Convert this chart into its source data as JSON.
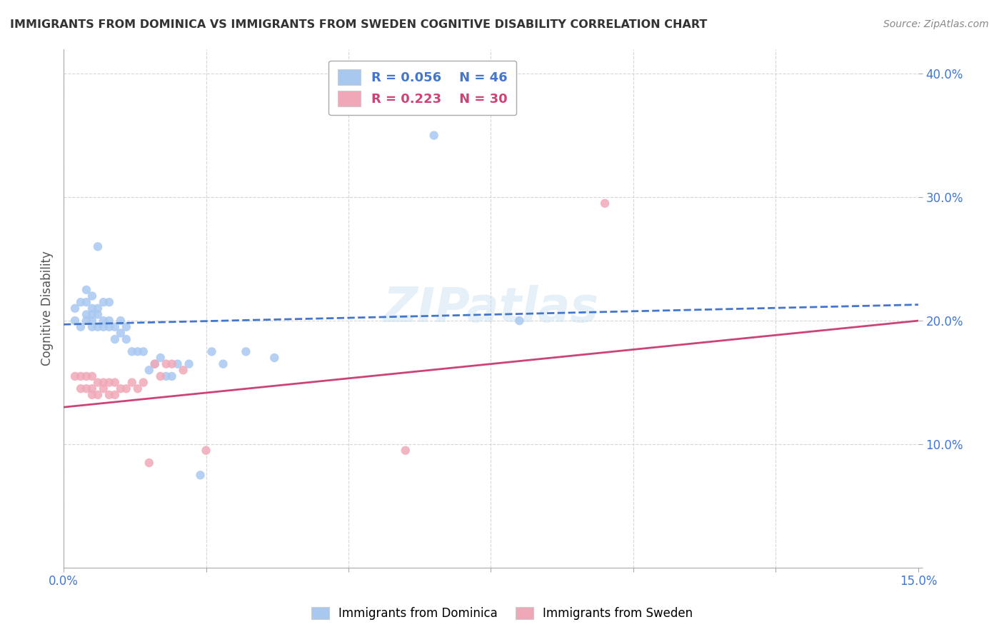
{
  "title": "IMMIGRANTS FROM DOMINICA VS IMMIGRANTS FROM SWEDEN COGNITIVE DISABILITY CORRELATION CHART",
  "source": "Source: ZipAtlas.com",
  "ylabel_label": "Cognitive Disability",
  "xlim": [
    0.0,
    0.15
  ],
  "ylim": [
    0.0,
    0.42
  ],
  "xticks": [
    0.0,
    0.025,
    0.05,
    0.075,
    0.1,
    0.125,
    0.15
  ],
  "yticks": [
    0.0,
    0.1,
    0.2,
    0.3,
    0.4
  ],
  "ytick_labels": [
    "",
    "10.0%",
    "20.0%",
    "30.0%",
    "40.0%"
  ],
  "xtick_labels": [
    "0.0%",
    "",
    "",
    "",
    "",
    "",
    "15.0%"
  ],
  "legend_r1": "0.056",
  "legend_n1": "46",
  "legend_r2": "0.223",
  "legend_n2": "30",
  "dominica_color": "#a8c8f0",
  "sweden_color": "#f0a8b8",
  "trend_dominica_color": "#4477cc",
  "trend_sweden_color": "#cc4477",
  "watermark": "ZIPatlas",
  "dominica_x": [
    0.002,
    0.002,
    0.003,
    0.003,
    0.004,
    0.004,
    0.004,
    0.004,
    0.005,
    0.005,
    0.005,
    0.005,
    0.005,
    0.006,
    0.006,
    0.006,
    0.006,
    0.007,
    0.007,
    0.007,
    0.008,
    0.008,
    0.008,
    0.009,
    0.009,
    0.01,
    0.01,
    0.011,
    0.011,
    0.012,
    0.013,
    0.014,
    0.015,
    0.016,
    0.017,
    0.018,
    0.019,
    0.02,
    0.022,
    0.024,
    0.026,
    0.028,
    0.032,
    0.037,
    0.065,
    0.08
  ],
  "dominica_y": [
    0.2,
    0.21,
    0.195,
    0.215,
    0.2,
    0.205,
    0.215,
    0.225,
    0.195,
    0.2,
    0.205,
    0.21,
    0.22,
    0.195,
    0.205,
    0.21,
    0.26,
    0.195,
    0.2,
    0.215,
    0.195,
    0.2,
    0.215,
    0.185,
    0.195,
    0.19,
    0.2,
    0.185,
    0.195,
    0.175,
    0.175,
    0.175,
    0.16,
    0.165,
    0.17,
    0.155,
    0.155,
    0.165,
    0.165,
    0.075,
    0.175,
    0.165,
    0.175,
    0.17,
    0.35,
    0.2
  ],
  "sweden_x": [
    0.002,
    0.003,
    0.003,
    0.004,
    0.004,
    0.005,
    0.005,
    0.005,
    0.006,
    0.006,
    0.007,
    0.007,
    0.008,
    0.008,
    0.009,
    0.009,
    0.01,
    0.011,
    0.012,
    0.013,
    0.014,
    0.015,
    0.016,
    0.017,
    0.018,
    0.019,
    0.021,
    0.025,
    0.06,
    0.095
  ],
  "sweden_y": [
    0.155,
    0.145,
    0.155,
    0.145,
    0.155,
    0.14,
    0.145,
    0.155,
    0.14,
    0.15,
    0.145,
    0.15,
    0.14,
    0.15,
    0.14,
    0.15,
    0.145,
    0.145,
    0.15,
    0.145,
    0.15,
    0.085,
    0.165,
    0.155,
    0.165,
    0.165,
    0.16,
    0.095,
    0.095,
    0.295
  ],
  "trend_dom_x0": 0.0,
  "trend_dom_x1": 0.15,
  "trend_dom_y0": 0.197,
  "trend_dom_y1": 0.213,
  "trend_swe_x0": 0.0,
  "trend_swe_x1": 0.15,
  "trend_swe_y0": 0.13,
  "trend_swe_y1": 0.2,
  "background_color": "#ffffff",
  "grid_color": "#cccccc"
}
